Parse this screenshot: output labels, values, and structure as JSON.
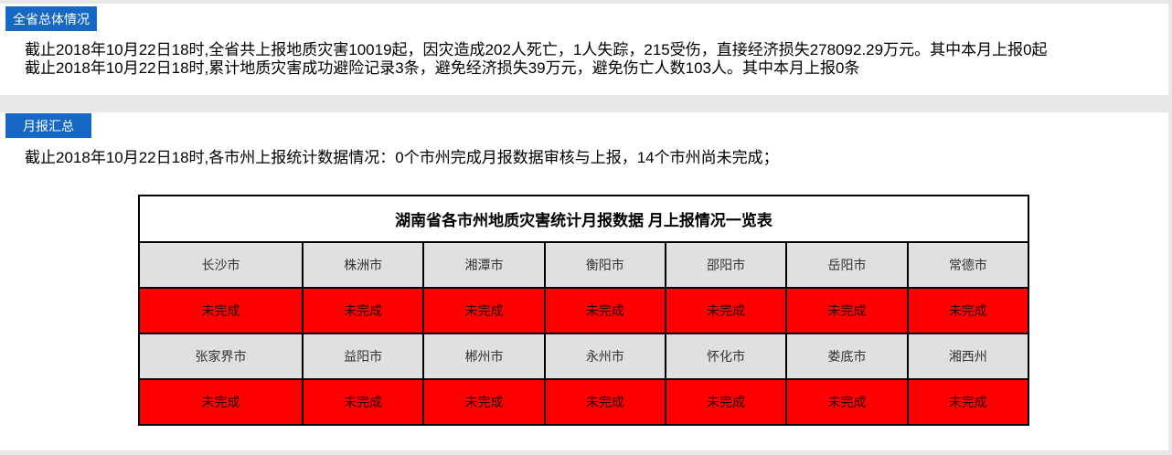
{
  "page": {
    "accent_blue": "#1668c4",
    "band_gray": "#e8e8e8",
    "status_red": "#ff0000",
    "city_cell_gray": "#e0e0e0"
  },
  "section1": {
    "badge": "全省总体情况",
    "line1": "截止2018年10月22日18时,全省共上报地质灾害10019起，因灾造成202人死亡，1人失踪，215受伤，直接经济损失278092.29万元。其中本月上报0起",
    "line2": "截止2018年10月22日18时,累计地质灾害成功避险记录3条，避免经济损失39万元，避免伤亡人数103人。其中本月上报0条"
  },
  "section2": {
    "badge": "月报汇总",
    "line1": "截止2018年10月22日18时,各市州上报统计数据情况：0个市州完成月报数据审核与上报，14个市州尚未完成；",
    "table": {
      "title": "湖南省各市州地质灾害统计月报数据 月上报情况一览表",
      "rows": [
        {
          "type": "city",
          "cells": [
            "长沙市",
            "株洲市",
            "湘潭市",
            "衡阳市",
            "邵阳市",
            "岳阳市",
            "常德市"
          ]
        },
        {
          "type": "status",
          "cells": [
            "未完成",
            "未完成",
            "未完成",
            "未完成",
            "未完成",
            "未完成",
            "未完成"
          ]
        },
        {
          "type": "city",
          "cells": [
            "张家界市",
            "益阳市",
            "郴州市",
            "永州市",
            "怀化市",
            "娄底市",
            "湘西州"
          ]
        },
        {
          "type": "status",
          "cells": [
            "未完成",
            "未完成",
            "未完成",
            "未完成",
            "未完成",
            "未完成",
            "未完成"
          ]
        }
      ]
    }
  }
}
